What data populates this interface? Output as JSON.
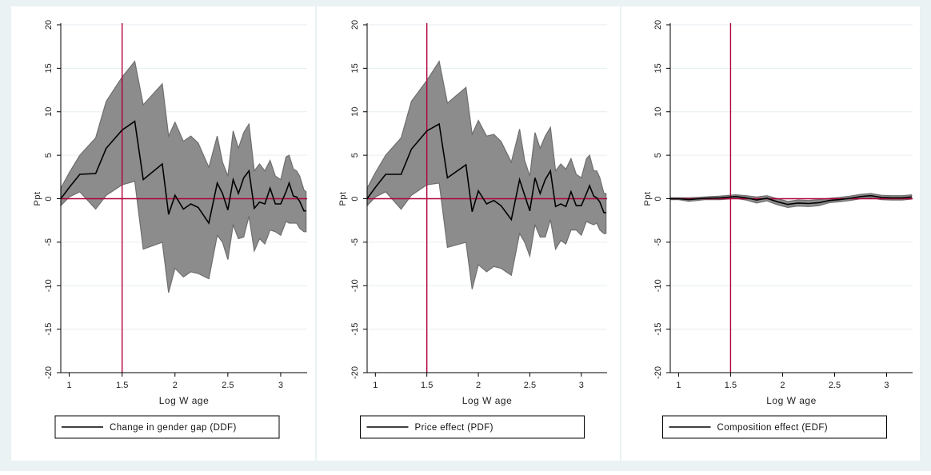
{
  "figure": {
    "background_color": "#eaf2f3",
    "panel_color": "#ffffff",
    "line_color": "#000000",
    "band_color": "#8c8c8c",
    "band_edge_color": "#6e6e6e",
    "refline_color": "#b0003a",
    "grid_color": "#e6eef0"
  },
  "chart_data": [
    {
      "type": "line",
      "xlabel": "Log W age",
      "ylabel": "Ppt",
      "xlim": [
        0.92,
        3.25
      ],
      "ylim": [
        -20,
        20
      ],
      "xticks": [
        "1",
        "1.5",
        "2",
        "2.5",
        "3"
      ],
      "yticks": [
        "20",
        "15",
        "10",
        "5",
        "0",
        "-5",
        "-10",
        "-15",
        "-20"
      ],
      "vline_x": 1.5,
      "hline_y": 0,
      "grid": true,
      "legend_position": "bottom",
      "series": [
        {
          "name": "Change in gender gap (DDF)",
          "x": [
            0.92,
            1.0,
            1.1,
            1.25,
            1.35,
            1.5,
            1.62,
            1.7,
            1.88,
            1.94,
            2.0,
            2.08,
            2.15,
            2.22,
            2.32,
            2.4,
            2.45,
            2.5,
            2.55,
            2.6,
            2.65,
            2.7,
            2.75,
            2.8,
            2.85,
            2.9,
            2.95,
            3.0,
            3.05,
            3.08,
            3.12,
            3.15,
            3.18,
            3.22,
            3.24
          ],
          "y": [
            0.0,
            1.3,
            2.8,
            2.9,
            5.8,
            7.9,
            8.9,
            2.2,
            4.0,
            -1.8,
            0.4,
            -1.2,
            -0.6,
            -1.0,
            -2.8,
            1.8,
            0.6,
            -1.3,
            2.2,
            0.6,
            2.4,
            3.2,
            -1.1,
            -0.4,
            -0.6,
            1.2,
            -0.6,
            -0.6,
            0.8,
            1.8,
            0.3,
            0.2,
            -0.3,
            -1.4,
            -1.4
          ]
        },
        {
          "name": "",
          "x": [
            0.92,
            1.0,
            1.1,
            1.25,
            1.35,
            1.5,
            1.62,
            1.7,
            1.88,
            1.94,
            2.0,
            2.08,
            2.15,
            2.22,
            2.32,
            2.4,
            2.45,
            2.5,
            2.55,
            2.6,
            2.65,
            2.7,
            2.75,
            2.8,
            2.85,
            2.9,
            2.95,
            3.0,
            3.05,
            3.08,
            3.12,
            3.15,
            3.18,
            3.22,
            3.24
          ],
          "y": [
            1.2,
            3.0,
            5.0,
            7.0,
            11.2,
            14.0,
            15.8,
            10.8,
            13.2,
            7.2,
            8.8,
            6.6,
            7.2,
            6.4,
            3.6,
            7.2,
            4.2,
            2.6,
            7.8,
            5.8,
            7.6,
            8.6,
            3.2,
            4.0,
            3.2,
            4.4,
            2.6,
            2.2,
            4.8,
            5.0,
            3.4,
            3.2,
            2.6,
            1.0,
            0.8
          ]
        },
        {
          "name": "",
          "x": [
            0.92,
            1.0,
            1.1,
            1.25,
            1.35,
            1.5,
            1.62,
            1.7,
            1.88,
            1.94,
            2.0,
            2.08,
            2.15,
            2.22,
            2.32,
            2.4,
            2.45,
            2.5,
            2.55,
            2.6,
            2.65,
            2.7,
            2.75,
            2.8,
            2.85,
            2.9,
            2.95,
            3.0,
            3.05,
            3.08,
            3.12,
            3.15,
            3.18,
            3.22,
            3.24
          ],
          "y": [
            -0.8,
            0.2,
            0.8,
            -1.2,
            0.4,
            1.6,
            2.0,
            -5.8,
            -5.0,
            -10.8,
            -8.0,
            -9.0,
            -8.4,
            -8.6,
            -9.2,
            -4.2,
            -5.0,
            -7.0,
            -3.0,
            -4.6,
            -4.4,
            -2.0,
            -6.0,
            -4.6,
            -5.2,
            -3.6,
            -3.8,
            -4.2,
            -2.6,
            -2.8,
            -2.8,
            -2.8,
            -3.4,
            -3.8,
            -3.8
          ]
        }
      ]
    },
    {
      "type": "line",
      "xlabel": "Log W age",
      "ylabel": "Ppt",
      "xlim": [
        0.92,
        3.25
      ],
      "ylim": [
        -20,
        20
      ],
      "xticks": [
        "1",
        "1.5",
        "2",
        "2.5",
        "3"
      ],
      "yticks": [
        "20",
        "15",
        "10",
        "5",
        "0",
        "-5",
        "-10",
        "-15",
        "-20"
      ],
      "vline_x": 1.5,
      "hline_y": 0,
      "grid": true,
      "legend_position": "bottom",
      "series": [
        {
          "name": "Price effect (PDF)",
          "x": [
            0.92,
            1.0,
            1.1,
            1.25,
            1.35,
            1.5,
            1.62,
            1.7,
            1.88,
            1.94,
            2.0,
            2.08,
            2.15,
            2.22,
            2.32,
            2.4,
            2.45,
            2.5,
            2.55,
            2.6,
            2.65,
            2.7,
            2.75,
            2.8,
            2.85,
            2.9,
            2.95,
            3.0,
            3.05,
            3.08,
            3.12,
            3.15,
            3.18,
            3.22,
            3.24
          ],
          "y": [
            0.0,
            1.3,
            2.8,
            2.8,
            5.7,
            7.8,
            8.6,
            2.4,
            3.9,
            -1.5,
            0.9,
            -0.6,
            -0.2,
            -0.8,
            -2.4,
            2.2,
            0.4,
            -1.4,
            2.4,
            0.6,
            2.2,
            3.2,
            -0.9,
            -0.6,
            -0.9,
            0.8,
            -0.8,
            -0.8,
            0.6,
            1.5,
            0.3,
            0.1,
            -0.4,
            -1.6,
            -1.6
          ]
        },
        {
          "name": "",
          "x": [
            0.92,
            1.0,
            1.1,
            1.25,
            1.35,
            1.5,
            1.62,
            1.7,
            1.88,
            1.94,
            2.0,
            2.08,
            2.15,
            2.22,
            2.32,
            2.4,
            2.45,
            2.5,
            2.55,
            2.6,
            2.65,
            2.7,
            2.75,
            2.8,
            2.85,
            2.9,
            2.95,
            3.0,
            3.05,
            3.08,
            3.12,
            3.15,
            3.18,
            3.22,
            3.24
          ],
          "y": [
            1.2,
            3.0,
            5.0,
            7.0,
            11.2,
            13.6,
            15.8,
            11.0,
            12.8,
            7.4,
            9.0,
            7.2,
            7.4,
            6.6,
            4.2,
            8.0,
            4.4,
            2.6,
            7.6,
            5.8,
            7.2,
            8.2,
            3.2,
            4.0,
            3.4,
            4.6,
            2.8,
            2.4,
            4.6,
            5.0,
            3.2,
            3.2,
            2.4,
            0.6,
            0.6
          ]
        },
        {
          "name": "",
          "x": [
            0.92,
            1.0,
            1.1,
            1.25,
            1.35,
            1.5,
            1.62,
            1.7,
            1.88,
            1.94,
            2.0,
            2.08,
            2.15,
            2.22,
            2.32,
            2.4,
            2.45,
            2.5,
            2.55,
            2.6,
            2.65,
            2.7,
            2.75,
            2.8,
            2.85,
            2.9,
            2.95,
            3.0,
            3.05,
            3.08,
            3.12,
            3.15,
            3.18,
            3.22,
            3.24
          ],
          "y": [
            -0.8,
            0.2,
            0.8,
            -1.2,
            0.4,
            1.6,
            1.8,
            -5.6,
            -5.0,
            -10.4,
            -7.6,
            -8.4,
            -7.8,
            -8.0,
            -8.8,
            -4.0,
            -5.0,
            -6.6,
            -3.0,
            -4.4,
            -4.4,
            -2.4,
            -5.8,
            -4.8,
            -5.2,
            -3.6,
            -3.6,
            -4.2,
            -2.6,
            -2.8,
            -3.0,
            -2.8,
            -3.6,
            -4.0,
            -4.0
          ]
        }
      ]
    },
    {
      "type": "line",
      "xlabel": "Log W age",
      "ylabel": "Ppt",
      "xlim": [
        0.92,
        3.25
      ],
      "ylim": [
        -20,
        20
      ],
      "xticks": [
        "1",
        "1.5",
        "2",
        "2.5",
        "3"
      ],
      "yticks": [
        "20",
        "15",
        "10",
        "5",
        "0",
        "-5",
        "-10",
        "-15",
        "-20"
      ],
      "vline_x": 1.5,
      "hline_y": 0,
      "grid": true,
      "legend_position": "bottom",
      "series": [
        {
          "name": "Composition effect (EDF)",
          "x": [
            0.92,
            1.0,
            1.1,
            1.25,
            1.4,
            1.55,
            1.65,
            1.75,
            1.85,
            1.95,
            2.05,
            2.15,
            2.25,
            2.35,
            2.45,
            2.55,
            2.65,
            2.75,
            2.85,
            2.95,
            3.05,
            3.15,
            3.24
          ],
          "y": [
            0.0,
            0.0,
            -0.1,
            0.05,
            0.1,
            0.25,
            0.1,
            -0.15,
            0.05,
            -0.35,
            -0.65,
            -0.5,
            -0.55,
            -0.45,
            -0.2,
            -0.1,
            0.05,
            0.25,
            0.35,
            0.15,
            0.1,
            0.1,
            0.2
          ]
        },
        {
          "name": "",
          "x": [
            0.92,
            1.0,
            1.1,
            1.25,
            1.4,
            1.55,
            1.65,
            1.75,
            1.85,
            1.95,
            2.05,
            2.15,
            2.25,
            2.35,
            2.45,
            2.55,
            2.65,
            2.75,
            2.85,
            2.95,
            3.05,
            3.15,
            3.24
          ],
          "y": [
            0.1,
            0.1,
            0.1,
            0.2,
            0.3,
            0.45,
            0.35,
            0.2,
            0.35,
            0.0,
            -0.3,
            -0.15,
            -0.2,
            -0.1,
            0.05,
            0.15,
            0.3,
            0.5,
            0.6,
            0.4,
            0.35,
            0.35,
            0.45
          ]
        },
        {
          "name": "",
          "x": [
            0.92,
            1.0,
            1.1,
            1.25,
            1.4,
            1.55,
            1.65,
            1.75,
            1.85,
            1.95,
            2.05,
            2.15,
            2.25,
            2.35,
            2.45,
            2.55,
            2.65,
            2.75,
            2.85,
            2.95,
            3.05,
            3.15,
            3.24
          ],
          "y": [
            -0.1,
            -0.1,
            -0.3,
            -0.1,
            -0.1,
            0.05,
            -0.15,
            -0.5,
            -0.25,
            -0.7,
            -1.0,
            -0.85,
            -0.9,
            -0.8,
            -0.45,
            -0.35,
            -0.2,
            0.0,
            0.1,
            -0.1,
            -0.15,
            -0.15,
            -0.05
          ]
        }
      ]
    }
  ]
}
